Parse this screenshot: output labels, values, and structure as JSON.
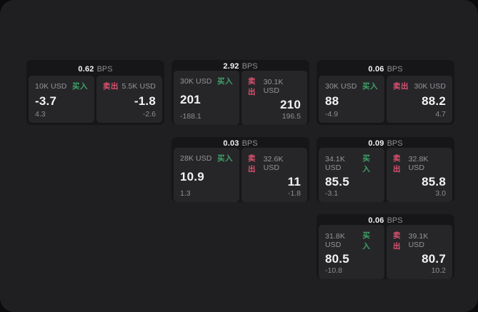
{
  "labels": {
    "bps": "BPS",
    "buy": "买入",
    "sell": "卖出"
  },
  "colors": {
    "page_bg": "#0b0b0c",
    "panel_bg": "#1f1f21",
    "card_bg": "#161618",
    "tile_bg": "#262629",
    "text_primary": "#f3f3f5",
    "text_secondary": "#8e8e93",
    "buy_green": "#3ea266",
    "sell_red": "#dc5270"
  },
  "cards": [
    {
      "bps": "0.62",
      "buy": {
        "size": "10K USD",
        "value": "-3.7",
        "delta": "4.3"
      },
      "sell": {
        "size": "5.5K USD",
        "value": "-1.8",
        "delta": "-2.6"
      }
    },
    {
      "bps": "2.92",
      "buy": {
        "size": "30K USD",
        "value": "201",
        "delta": "-188.1"
      },
      "sell": {
        "size": "30.1K USD",
        "value": "210",
        "delta": "196.5"
      }
    },
    {
      "bps": "0.06",
      "buy": {
        "size": "30K USD",
        "value": "88",
        "delta": "-4.9"
      },
      "sell": {
        "size": "30K USD",
        "value": "88.2",
        "delta": "4.7"
      }
    },
    {
      "bps": "0.03",
      "buy": {
        "size": "28K USD",
        "value": "10.9",
        "delta": "1.3"
      },
      "sell": {
        "size": "32.6K USD",
        "value": "11",
        "delta": "-1.8"
      }
    },
    {
      "bps": "0.09",
      "buy": {
        "size": "34.1K USD",
        "value": "85.5",
        "delta": "-3.1"
      },
      "sell": {
        "size": "32.8K USD",
        "value": "85.8",
        "delta": "3.0"
      }
    },
    {
      "bps": "0.06",
      "buy": {
        "size": "31.8K USD",
        "value": "80.5",
        "delta": "-10.8"
      },
      "sell": {
        "size": "39.1K USD",
        "value": "80.7",
        "delta": "10.2"
      }
    }
  ]
}
